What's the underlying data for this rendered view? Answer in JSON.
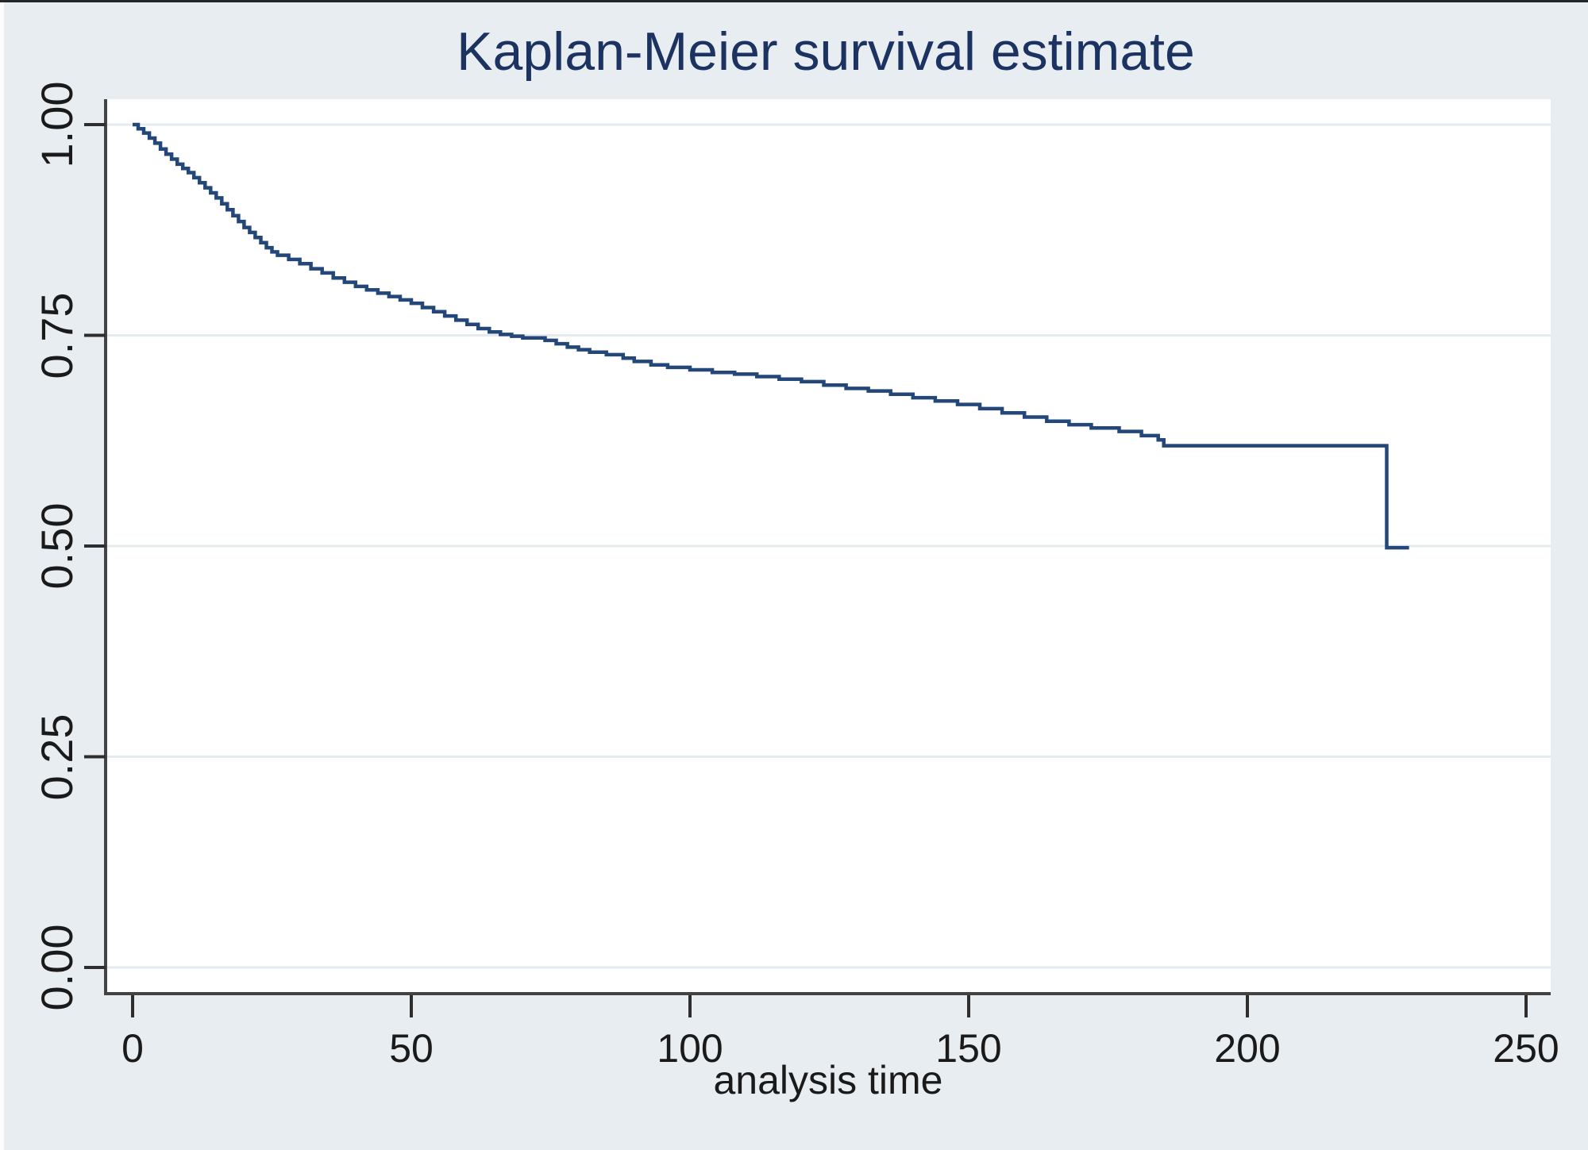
{
  "chart_data": {
    "type": "line",
    "subtype": "kaplan-meier-step-function",
    "title": "Kaplan-Meier survival estimate",
    "xlabel": "analysis time",
    "ylabel": "",
    "x_ticks": [
      0,
      50,
      100,
      150,
      200,
      250
    ],
    "x_tick_labels": [
      "0",
      "50",
      "100",
      "150",
      "200",
      "250"
    ],
    "y_ticks": [
      1.0,
      0.75,
      0.5,
      0.25,
      0.0
    ],
    "y_tick_labels": [
      "1.00",
      "0.75",
      "0.50",
      "0.25",
      "0.00"
    ],
    "xlim": [
      0,
      251
    ],
    "ylim": [
      0,
      1.0
    ],
    "grid": "horizontal-only",
    "legend": "none",
    "series": [
      {
        "name": "Kaplan-Meier survival estimate",
        "step": true,
        "color": "#234779",
        "points": [
          [
            0,
            1.0
          ],
          [
            1,
            0.995
          ],
          [
            2,
            0.99
          ],
          [
            3,
            0.984
          ],
          [
            4,
            0.978
          ],
          [
            5,
            0.971
          ],
          [
            6,
            0.965
          ],
          [
            7,
            0.959
          ],
          [
            8,
            0.953
          ],
          [
            9,
            0.948
          ],
          [
            10,
            0.943
          ],
          [
            11,
            0.937
          ],
          [
            12,
            0.931
          ],
          [
            13,
            0.925
          ],
          [
            14,
            0.919
          ],
          [
            15,
            0.913
          ],
          [
            16,
            0.906
          ],
          [
            17,
            0.899
          ],
          [
            18,
            0.892
          ],
          [
            19,
            0.885
          ],
          [
            20,
            0.878
          ],
          [
            21,
            0.872
          ],
          [
            22,
            0.866
          ],
          [
            23,
            0.86
          ],
          [
            24,
            0.854
          ],
          [
            25,
            0.849
          ],
          [
            26,
            0.845
          ],
          [
            28,
            0.84
          ],
          [
            30,
            0.835
          ],
          [
            32,
            0.829
          ],
          [
            34,
            0.824
          ],
          [
            36,
            0.818
          ],
          [
            38,
            0.813
          ],
          [
            40,
            0.808
          ],
          [
            42,
            0.804
          ],
          [
            44,
            0.8
          ],
          [
            46,
            0.796
          ],
          [
            48,
            0.792
          ],
          [
            50,
            0.788
          ],
          [
            52,
            0.783
          ],
          [
            54,
            0.778
          ],
          [
            56,
            0.773
          ],
          [
            58,
            0.768
          ],
          [
            60,
            0.763
          ],
          [
            62,
            0.758
          ],
          [
            64,
            0.754
          ],
          [
            66,
            0.751
          ],
          [
            68,
            0.749
          ],
          [
            70,
            0.747
          ],
          [
            74,
            0.744
          ],
          [
            76,
            0.74
          ],
          [
            78,
            0.736
          ],
          [
            80,
            0.733
          ],
          [
            82,
            0.73
          ],
          [
            85,
            0.727
          ],
          [
            88,
            0.723
          ],
          [
            90,
            0.719
          ],
          [
            93,
            0.715
          ],
          [
            96,
            0.712
          ],
          [
            100,
            0.709
          ],
          [
            104,
            0.706
          ],
          [
            108,
            0.704
          ],
          [
            112,
            0.701
          ],
          [
            116,
            0.698
          ],
          [
            120,
            0.695
          ],
          [
            124,
            0.691
          ],
          [
            128,
            0.687
          ],
          [
            132,
            0.684
          ],
          [
            136,
            0.68
          ],
          [
            140,
            0.676
          ],
          [
            144,
            0.672
          ],
          [
            148,
            0.668
          ],
          [
            152,
            0.663
          ],
          [
            156,
            0.658
          ],
          [
            160,
            0.653
          ],
          [
            164,
            0.648
          ],
          [
            168,
            0.644
          ],
          [
            172,
            0.64
          ],
          [
            177,
            0.636
          ],
          [
            181,
            0.631
          ],
          [
            184,
            0.626
          ],
          [
            185,
            0.619
          ],
          [
            225,
            0.498
          ],
          [
            229,
            0.498
          ]
        ]
      }
    ]
  },
  "colors": {
    "figure_background": "#e7edf1",
    "plot_background": "#ffffff",
    "gridline": "#e4ebef",
    "axis_line": "#434343",
    "tick_mark": "#2e2e2e",
    "title_text": "#1c3362",
    "label_text": "#1a1a1a",
    "curve": "#234779",
    "top_edge": "#23272b",
    "left_edge": "#fbfcfd"
  }
}
